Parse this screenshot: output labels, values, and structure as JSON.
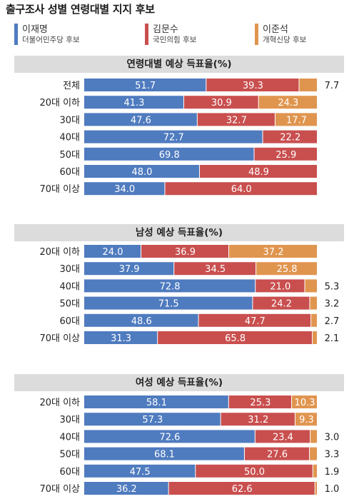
{
  "title": "출구조사 성별 연령대별 지지 후보",
  "legend": [
    {
      "name": "이재명",
      "party": "더불어민주당 후보",
      "color": "#4f7bbf"
    },
    {
      "name": "김문수",
      "party": "국민의힘 후보",
      "color": "#c94f4f"
    },
    {
      "name": "이준석",
      "party": "개혁신당 후보",
      "color": "#e0954f"
    }
  ],
  "chart_data": [
    {
      "type": "bar",
      "stacked": true,
      "orientation": "horizontal",
      "title": "연령대별 예상 득표율(%)",
      "categories": [
        "전체",
        "20대 이하",
        "30대",
        "40대",
        "50대",
        "60대",
        "70대 이상"
      ],
      "series": [
        {
          "name": "이재명",
          "values": [
            51.7,
            41.3,
            47.6,
            72.7,
            69.8,
            48.0,
            34.0
          ]
        },
        {
          "name": "김문수",
          "values": [
            39.3,
            30.9,
            32.7,
            22.2,
            25.9,
            48.9,
            64.0
          ]
        },
        {
          "name": "이준석",
          "values": [
            7.7,
            24.3,
            17.7,
            null,
            null,
            null,
            null
          ]
        }
      ]
    },
    {
      "type": "bar",
      "stacked": true,
      "orientation": "horizontal",
      "title": "남성 예상 득표율(%)",
      "categories": [
        "20대 이하",
        "30대",
        "40대",
        "50대",
        "60대",
        "70대 이상"
      ],
      "series": [
        {
          "name": "이재명",
          "values": [
            24.0,
            37.9,
            72.8,
            71.5,
            48.6,
            31.3
          ]
        },
        {
          "name": "김문수",
          "values": [
            36.9,
            34.5,
            21.0,
            24.2,
            47.7,
            65.8
          ]
        },
        {
          "name": "이준석",
          "values": [
            37.2,
            25.8,
            5.3,
            3.2,
            2.7,
            2.1
          ]
        }
      ]
    },
    {
      "type": "bar",
      "stacked": true,
      "orientation": "horizontal",
      "title": "여성 예상 득표율(%)",
      "categories": [
        "20대 이하",
        "30대",
        "40대",
        "50대",
        "60대",
        "70대 이상"
      ],
      "series": [
        {
          "name": "이재명",
          "values": [
            58.1,
            57.3,
            72.6,
            68.1,
            47.5,
            36.2
          ]
        },
        {
          "name": "김문수",
          "values": [
            25.3,
            31.2,
            23.4,
            27.6,
            50.0,
            62.6
          ]
        },
        {
          "name": "이준석",
          "values": [
            10.3,
            9.3,
            3.0,
            3.3,
            1.9,
            1.0
          ]
        }
      ]
    }
  ]
}
